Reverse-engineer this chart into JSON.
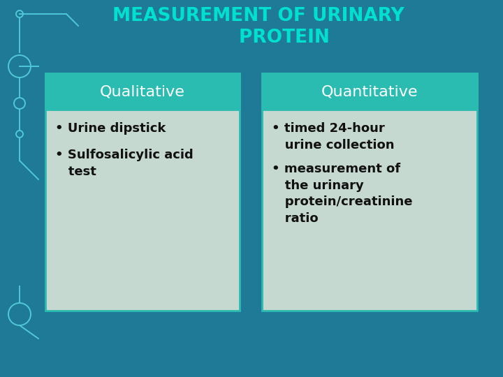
{
  "title_line1": "MEASUREMENT OF URINARY",
  "title_line2": "PROTEIN",
  "title_color": "#00E0D0",
  "bg_color": "#1e7a96",
  "header_color": "#2abcb0",
  "card_bg_color": "#c5d9d0",
  "card_border_color": "#2abcb0",
  "left_header": "Qualitative",
  "right_header": "Quantitative",
  "header_text_color": "#ffffff",
  "left_bullet1": "• Urine dipstick",
  "left_bullet2": "• Sulfosalicylic acid\n   test",
  "right_bullet1": "• timed 24-hour\n   urine collection",
  "right_bullet2": "• measurement of\n   the urinary\n   protein/creatinine\n   ratio",
  "bullet_text_color": "#111111",
  "title_fontsize": 19,
  "header_fontsize": 16,
  "bullet_fontsize": 13,
  "decor_color": "#50c8d8"
}
